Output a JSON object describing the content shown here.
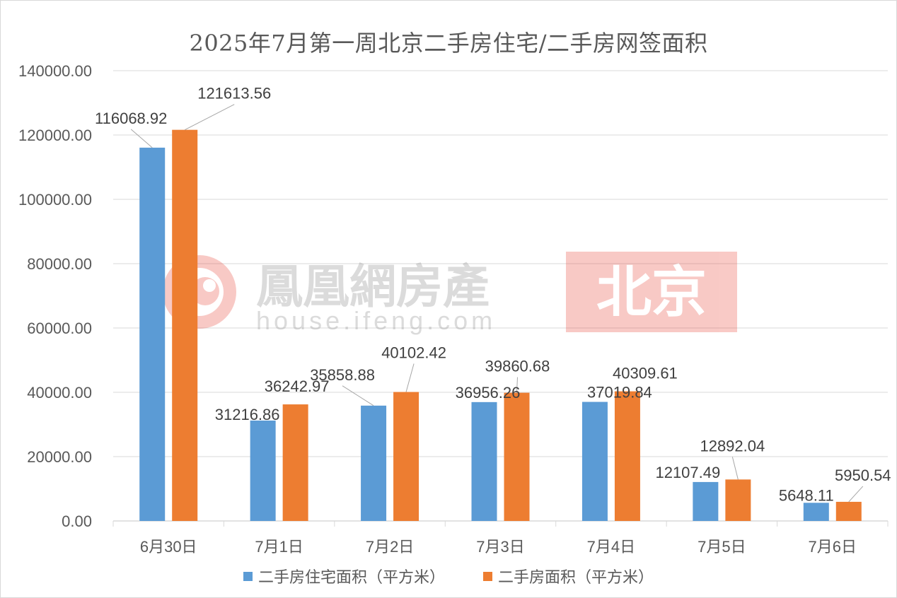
{
  "colors": {
    "series1": "#5b9bd5",
    "series2": "#ed7d31",
    "grid": "#d9d9d9",
    "axis_text": "#595959"
  },
  "watermark": {
    "brand": "鳳凰網房產",
    "url": "house.ifeng.com",
    "city": "北京"
  },
  "chart_data": {
    "type": "bar",
    "title": "2025年7月第一周北京二手房住宅/二手房网签面积",
    "categories": [
      "6月30日",
      "7月1日",
      "7月2日",
      "7月3日",
      "7月4日",
      "7月5日",
      "7月6日"
    ],
    "series": [
      {
        "name": "二手房住宅面积（平方米）",
        "values": [
          116068.92,
          31216.86,
          35858.88,
          36956.26,
          37019.84,
          12107.49,
          5648.11
        ]
      },
      {
        "name": "二手房面积（平方米）",
        "values": [
          121613.56,
          36242.97,
          40102.42,
          39860.68,
          40309.61,
          12892.04,
          5950.54
        ]
      }
    ],
    "data_labels": [
      [
        "116068.92",
        "31216.86",
        "35858.88",
        "36956.26",
        "37019.84",
        "12107.49",
        "5648.11"
      ],
      [
        "121613.56",
        "36242.97",
        "40102.42",
        "39860.68",
        "40309.61",
        "12892.04",
        "5950.54"
      ]
    ],
    "ylim": [
      0,
      140000
    ],
    "yticks": [
      "0.00",
      "20000.00",
      "40000.00",
      "60000.00",
      "80000.00",
      "100000.00",
      "120000.00",
      "140000.00"
    ],
    "grid": true,
    "legend": "bottom"
  }
}
